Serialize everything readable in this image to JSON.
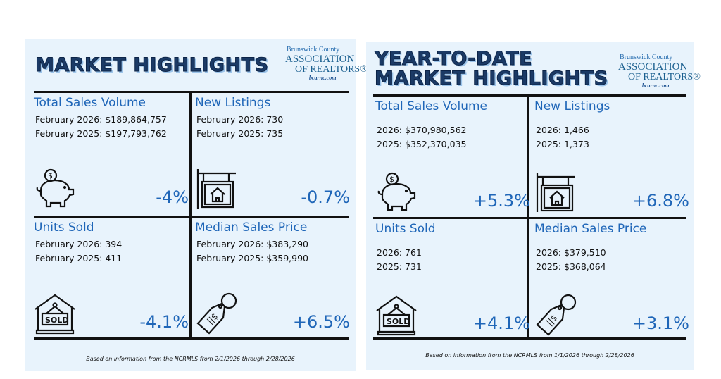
{
  "logo": {
    "line1": "Brunswick County",
    "line2": "ASSOCIATION",
    "line3": "OF REALTORS®",
    "line4": "bcarnc.com"
  },
  "left": {
    "title": "MARKET HIGHLIGHTS",
    "cells": [
      {
        "heading": "Total Sales Volume",
        "line1": "February 2026: $189,864,757",
        "line2": "February 2025: $197,793,762",
        "change": "-4%",
        "icon": "piggy-bank-icon"
      },
      {
        "heading": "New Listings",
        "line1": "February 2026: 730",
        "line2": "February 2025: 735",
        "change": "-0.7%",
        "icon": "house-sign-icon"
      },
      {
        "heading": "Units Sold",
        "line1": "February 2026: 394",
        "line2": "February 2025: 411",
        "change": "-4.1%",
        "icon": "sold-house-icon"
      },
      {
        "heading": "Median Sales Price",
        "line1": "February 2026: $383,290",
        "line2": "February 2025: $359,990",
        "change": "+6.5%",
        "icon": "price-tag-icon"
      }
    ],
    "footer": "Based on information from the NCRMLS from 2/1/2026 through 2/28/2026"
  },
  "right": {
    "title1": "YEAR-TO-DATE",
    "title2": "MARKET HIGHLIGHTS",
    "cells": [
      {
        "heading": "Total Sales Volume",
        "line1": "2026: $370,980,562",
        "line2": "2025: $352,370,035",
        "change": "+5.3%",
        "icon": "piggy-bank-icon"
      },
      {
        "heading": "New Listings",
        "line1": "2026: 1,466",
        "line2": "2025: 1,373",
        "change": "+6.8%",
        "icon": "house-sign-icon"
      },
      {
        "heading": "Units Sold",
        "line1": "2026: 761",
        "line2": "2025: 731",
        "change": "+4.1%",
        "icon": "sold-house-icon"
      },
      {
        "heading": "Median Sales Price",
        "line1": "2026: $379,510",
        "line2": "2025: $368,064",
        "change": "+3.1%",
        "icon": "price-tag-icon"
      }
    ],
    "footer": "Based on information from the NCRMLS from 1/1/2026 through 2/28/2026"
  }
}
